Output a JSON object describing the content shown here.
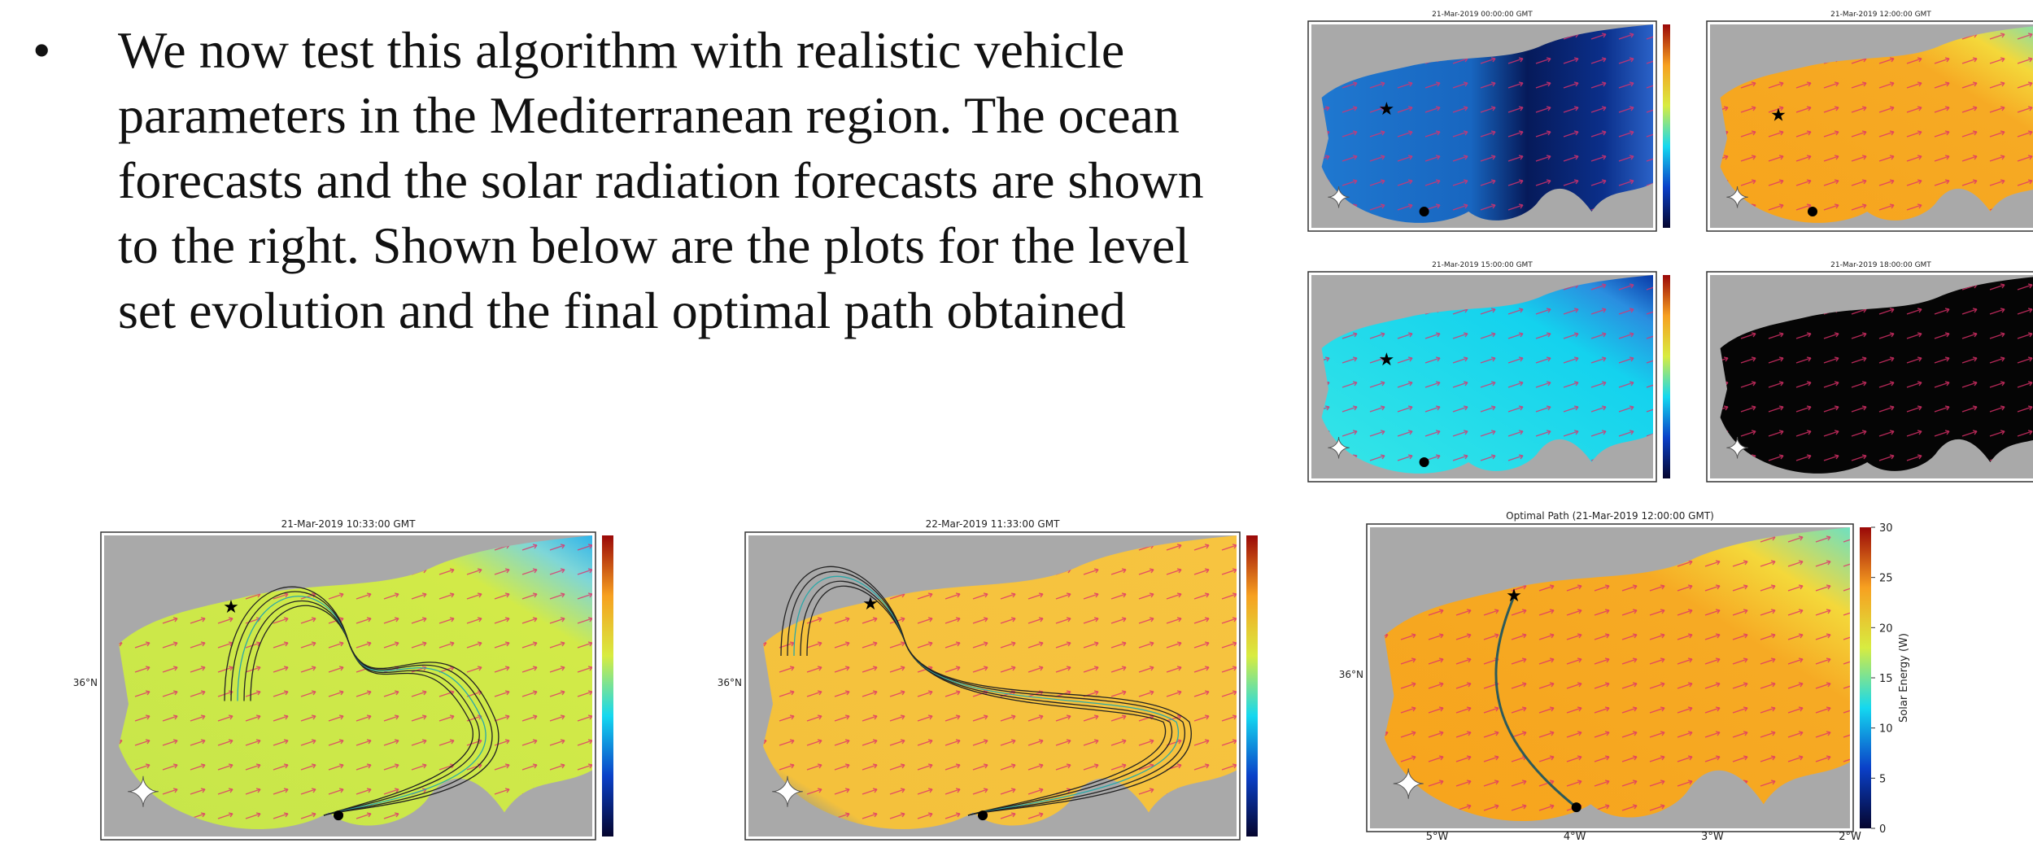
{
  "bullet": "We now test this algorithm with realistic vehicle parameters in the Mediterranean region. The ocean forecasts and the solar radiation forecasts are shown to the right. Shown below are the plots for the level set evolution and the final optimal path obtained",
  "maps": [
    {
      "title": "21-Mar-2019 00:00:00 GMT"
    },
    {
      "title": "21-Mar-2019 12:00:00 GMT"
    },
    {
      "title": "21-Mar-2019 15:00:00 GMT"
    },
    {
      "title": "21-Mar-2019 18:00:00 GMT"
    },
    {
      "title": "21-Mar-2019 10:33:00 GMT",
      "lat_label": "36°N"
    },
    {
      "title": "22-Mar-2019 11:33:00 GMT",
      "lat_label": "36°N"
    }
  ],
  "optimal_path": {
    "title": "Optimal Path (21-Mar-2019 12:00:00 GMT)",
    "lat_label": "36°N",
    "lon_labels": [
      "5°W",
      "4°W",
      "3°W",
      "2°W"
    ],
    "colorbar_label": "Solar Energy (W)",
    "colorbar_ticks": [
      0,
      5,
      10,
      15,
      20,
      25,
      30
    ]
  }
}
